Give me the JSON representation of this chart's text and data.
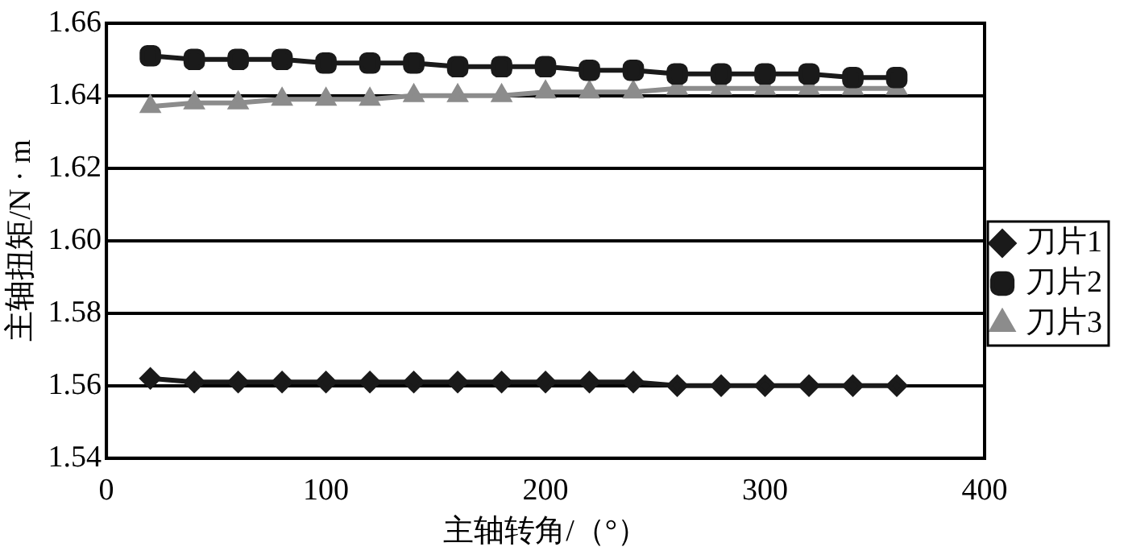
{
  "chart_data": {
    "type": "line",
    "xlabel": "主轴转角/（°）",
    "ylabel": "主轴扭矩/N · m",
    "x": [
      20,
      40,
      60,
      80,
      100,
      120,
      140,
      160,
      180,
      200,
      220,
      240,
      260,
      280,
      300,
      320,
      340,
      360
    ],
    "xlim": [
      0,
      400
    ],
    "xticks": [
      0,
      100,
      200,
      300,
      400
    ],
    "ylim": [
      1.54,
      1.66
    ],
    "yticks": [
      1.54,
      1.56,
      1.58,
      {
        "value": 1.6,
        "label": "1.60"
      },
      1.62,
      1.64,
      1.66
    ],
    "grid": "y",
    "legend": "right",
    "series": [
      {
        "name": "刀片1",
        "color": "#1a1a1a",
        "marker": "diamond",
        "values": [
          1.562,
          1.561,
          1.561,
          1.561,
          1.561,
          1.561,
          1.561,
          1.561,
          1.561,
          1.561,
          1.561,
          1.561,
          1.56,
          1.56,
          1.56,
          1.56,
          1.56,
          1.56
        ]
      },
      {
        "name": "刀片2",
        "color": "#1a1a1a",
        "marker": "square",
        "values": [
          1.651,
          1.65,
          1.65,
          1.65,
          1.649,
          1.649,
          1.649,
          1.648,
          1.648,
          1.648,
          1.647,
          1.647,
          1.646,
          1.646,
          1.646,
          1.646,
          1.645,
          1.645
        ]
      },
      {
        "name": "刀片3",
        "color": "#8c8c8c",
        "marker": "triangle",
        "values": [
          1.637,
          1.638,
          1.638,
          1.639,
          1.639,
          1.639,
          1.64,
          1.64,
          1.64,
          1.641,
          1.641,
          1.641,
          1.642,
          1.642,
          1.642,
          1.642,
          1.642,
          1.642
        ]
      }
    ]
  }
}
